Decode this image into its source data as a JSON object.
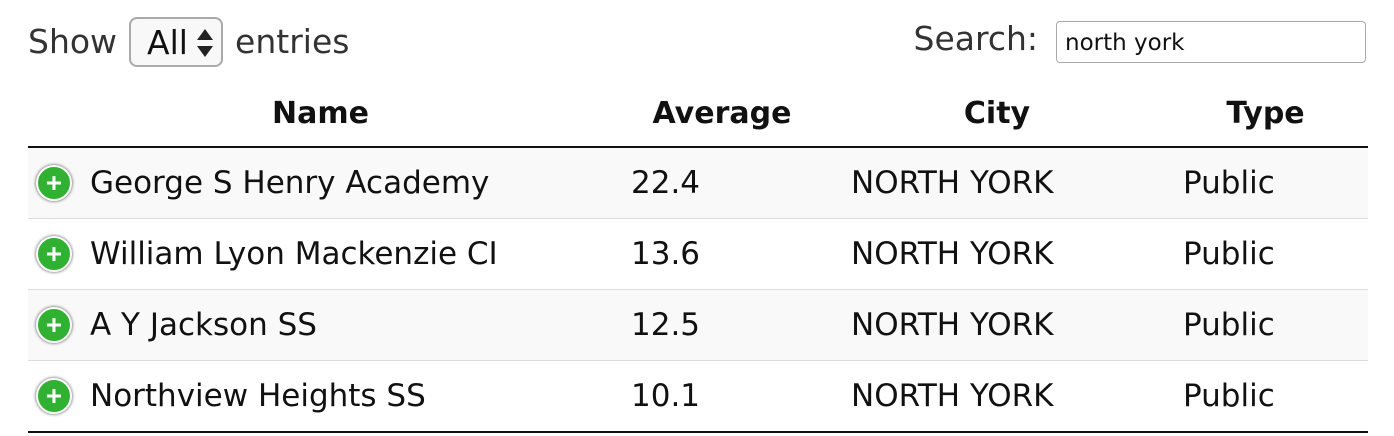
{
  "controls": {
    "show_label": "Show",
    "entries_selected": "All",
    "entries_label": "entries",
    "search_label": "Search:",
    "search_value": "north york"
  },
  "table": {
    "headers": [
      "Name",
      "Average",
      "City",
      "Type"
    ],
    "rows": [
      {
        "expand_icon": "+",
        "name": "George S Henry Academy",
        "average": "22.4",
        "city": "NORTH YORK",
        "type": "Public"
      },
      {
        "expand_icon": "+",
        "name": "William Lyon Mackenzie CI",
        "average": "13.6",
        "city": "NORTH YORK",
        "type": "Public"
      },
      {
        "expand_icon": "+",
        "name": "A Y Jackson SS",
        "average": "12.5",
        "city": "NORTH YORK",
        "type": "Public"
      },
      {
        "expand_icon": "+",
        "name": "Northview Heights SS",
        "average": "10.1",
        "city": "NORTH YORK",
        "type": "Public"
      }
    ]
  },
  "colors": {
    "expand_icon": "#31b131",
    "row_stripe": "#f9f9f9",
    "border": "#111111"
  }
}
